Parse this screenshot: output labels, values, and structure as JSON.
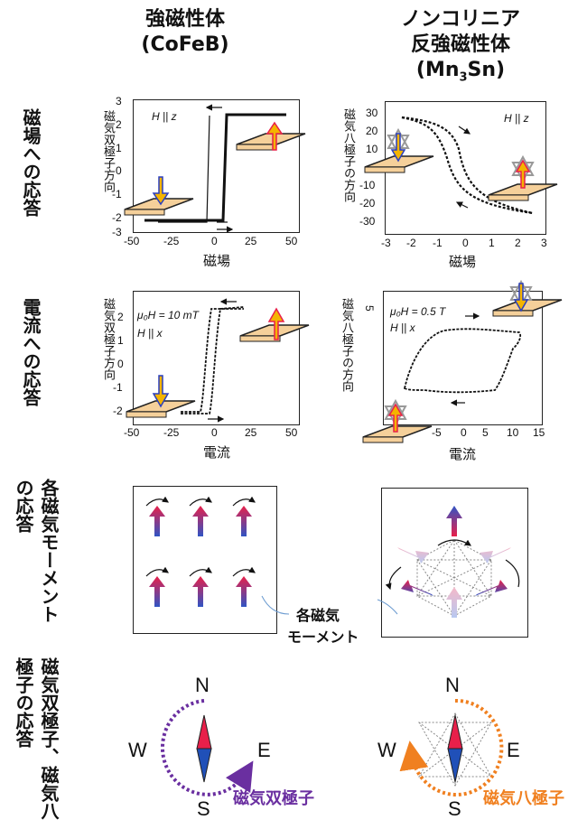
{
  "columns": {
    "left": {
      "line1": "強磁性体",
      "line2": "(CoFeB)"
    },
    "right": {
      "line1": "ノンコリニア",
      "line2": "反強磁性体",
      "line3_main": "(Mn",
      "line3_sub": "3",
      "line3_end": "Sn)"
    }
  },
  "rows": {
    "field": "磁場への応答",
    "current": "電流への応答",
    "moments": "各磁気モーメントの応答",
    "compass": "磁気双極子、磁気八極子の応答"
  },
  "plots": {
    "p1": {
      "ylabel": "磁気双極子方向",
      "xlabel": "磁場",
      "anno": "H || z",
      "xticks": [
        "-50",
        "-25",
        "0",
        "25",
        "50"
      ],
      "yticks": [
        "3",
        "2",
        "1",
        "0",
        "-1",
        "-2",
        "-3"
      ]
    },
    "p2": {
      "ylabel": "磁気八極子の方向",
      "xlabel": "磁場",
      "anno": "H || z",
      "xticks": [
        "-3",
        "-2",
        "-1",
        "0",
        "1",
        "2",
        "3"
      ],
      "yticks": [
        "30",
        "20",
        "10",
        "0",
        "-10",
        "-20",
        "-30"
      ]
    },
    "p3": {
      "ylabel": "磁気双極子方向",
      "xlabel": "電流",
      "anno1": "μ₀H = 10 mT",
      "anno2": "H || x",
      "xticks": [
        "-50",
        "-25",
        "0",
        "25",
        "50"
      ],
      "yticks": [
        "2",
        "1",
        "0",
        "-1",
        "-2"
      ]
    },
    "p4": {
      "ylabel": "磁気八極子の方向",
      "xlabel": "電流",
      "anno1": "μ₀H = 0.5 T",
      "anno2": "H || x",
      "xticks": [
        "-5",
        "0",
        "5",
        "10",
        "15"
      ],
      "ytick": "5"
    }
  },
  "moments_label": {
    "line1": "各磁気",
    "line2": "モーメント"
  },
  "compass": {
    "N": "N",
    "S": "S",
    "E": "E",
    "W": "W",
    "dipole_label": "磁気双極子",
    "octupole_label": "磁気八極子",
    "dipole_color": "#6a2fa0",
    "octupole_color": "#f08020"
  }
}
